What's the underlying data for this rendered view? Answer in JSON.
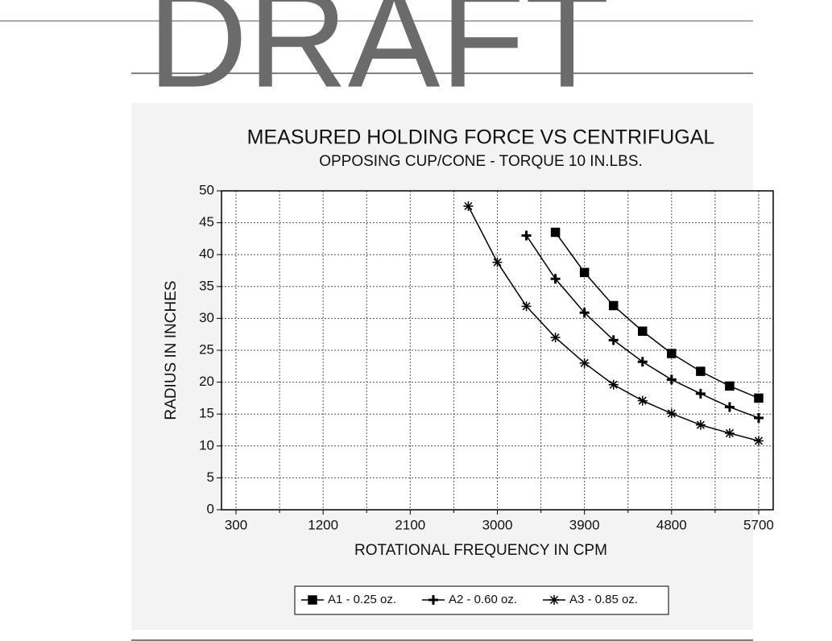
{
  "watermark": "DRAFT",
  "chart_data": {
    "type": "line",
    "title": "MEASURED HOLDING FORCE VS CENTRIFUGAL",
    "subtitle": "OPPOSING CUP/CONE - TORQUE 10 IN.LBS.",
    "x_label": "ROTATIONAL FREQUENCY IN CPM",
    "y_label": "RADIUS IN INCHES",
    "xlim": [
      150,
      5850
    ],
    "ylim": [
      0,
      50
    ],
    "xticks": [
      300,
      1200,
      2100,
      3000,
      3900,
      4800,
      5700
    ],
    "xminorticks": [
      750,
      1650,
      2550,
      3450,
      4350,
      5250
    ],
    "yticks": [
      0,
      5,
      10,
      15,
      20,
      25,
      30,
      35,
      40,
      45,
      50
    ],
    "grid": true,
    "legend": "bottom",
    "series": [
      {
        "name": "A1 - 0.25 oz.",
        "marker": "square",
        "color": "#000000",
        "x": [
          3600,
          3900,
          4200,
          4500,
          4800,
          5100,
          5400,
          5700
        ],
        "values": [
          43.5,
          37.2,
          32,
          28,
          24.5,
          21.7,
          19.4,
          17.5
        ]
      },
      {
        "name": "A2 - 0.60 oz.",
        "marker": "plus",
        "color": "#000000",
        "x": [
          3300,
          3600,
          3900,
          4200,
          4500,
          4800,
          5100,
          5400,
          5700
        ],
        "values": [
          43,
          36.2,
          30.9,
          26.6,
          23.2,
          20.4,
          18.2,
          16.1,
          14.4
        ]
      },
      {
        "name": "A3 - 0.85 oz.",
        "marker": "star",
        "color": "#000000",
        "x": [
          2700,
          3000,
          3300,
          3600,
          3900,
          4200,
          4500,
          4800,
          5100,
          5400,
          5700
        ],
        "values": [
          47.6,
          38.8,
          31.9,
          27,
          23,
          19.6,
          17.1,
          15.1,
          13.3,
          12,
          10.8
        ]
      }
    ]
  }
}
